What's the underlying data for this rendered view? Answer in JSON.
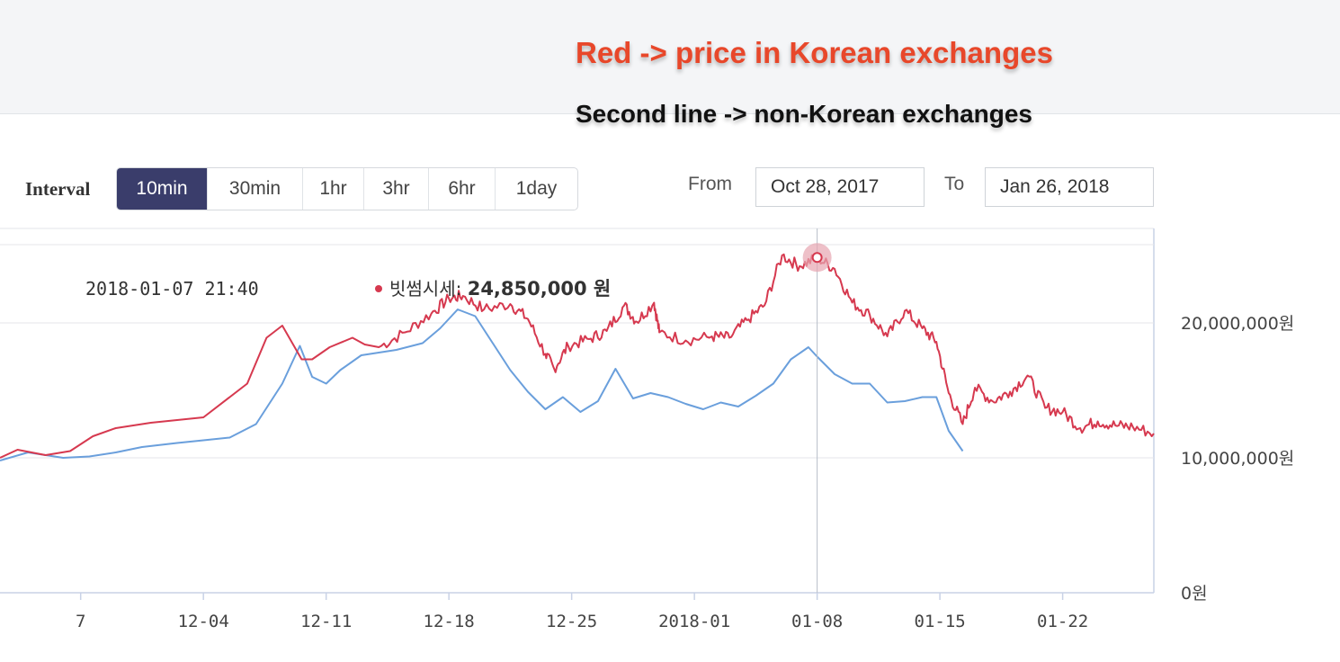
{
  "annotations": {
    "red_note": "Red -> price in Korean exchanges",
    "second_note": "Second line -> non-Korean exchanges"
  },
  "toolbar": {
    "interval_label": "Interval",
    "intervals": [
      "10min",
      "30min",
      "1hr",
      "3hr",
      "6hr",
      "1day"
    ],
    "active_interval": "10min",
    "from_label": "From",
    "from_value": "Oct 28, 2017",
    "to_label": "To",
    "to_value": "Jan 26, 2018"
  },
  "tooltip": {
    "time": "2018-01-07 21:40",
    "series_label": "빗썸시세: ",
    "value_text": "24,850,000 원"
  },
  "colors": {
    "korean_line": "#d6394f",
    "global_line": "#6a9fdc",
    "active_button": "#3a3d6b"
  },
  "chart_data": {
    "type": "line",
    "x_tick_labels": [
      "7",
      "12-04",
      "12-11",
      "12-18",
      "12-25",
      "2018-01",
      "01-08",
      "01-15",
      "01-22"
    ],
    "x_tick_days": [
      -7,
      0,
      7,
      14,
      21,
      28,
      35,
      42,
      49
    ],
    "x_note": "x values are days relative to 12-04 (2017-12-04)",
    "y_tick_labels": [
      "0원",
      "10,000,000원",
      "20,000,000원"
    ],
    "y_ticks": [
      0,
      10000000,
      20000000
    ],
    "ylim": [
      0,
      27000000
    ],
    "xlim": [
      -11.6,
      54.2
    ],
    "grid": true,
    "crosshair_day": 35.0,
    "highlight_point": {
      "day": 35.0,
      "value": 24850000
    },
    "series": [
      {
        "name": "빗썸시세",
        "x": [
          -11.6,
          -10.6,
          -9.0,
          -7.6,
          -6.3,
          -5.0,
          -3.0,
          0.0,
          2.5,
          3.6,
          4.5,
          5.6,
          6.2,
          7.2,
          8.5,
          9.2,
          10.0,
          11.5,
          13.0,
          14.0,
          14.8,
          16.0,
          17.5,
          18.5,
          19.5,
          20.0,
          20.8,
          22.0,
          23.0,
          24.0,
          24.7,
          25.7,
          26.0,
          27.5,
          29.0,
          30.0,
          31.0,
          32.0,
          33.0,
          34.0,
          35.0,
          36.0,
          37.0,
          38.0,
          39.0,
          40.0,
          41.0,
          41.8,
          42.5,
          43.3,
          44.0,
          45.0,
          46.0,
          47.0,
          48.0,
          49.0,
          50.0,
          51.0,
          52.0,
          53.0,
          54.2
        ],
        "y": [
          10000000,
          10600000,
          10200000,
          10500000,
          11600000,
          12200000,
          12600000,
          13000000,
          15500000,
          18900000,
          19800000,
          17300000,
          17300000,
          18200000,
          18900000,
          18400000,
          18200000,
          19300000,
          20700000,
          21800000,
          22000000,
          21000000,
          21400000,
          20300000,
          17700000,
          16600000,
          18300000,
          18800000,
          19400000,
          21300000,
          20100000,
          21500000,
          19300000,
          18700000,
          19000000,
          18900000,
          20200000,
          21300000,
          25000000,
          24200000,
          24850000,
          24000000,
          21500000,
          20600000,
          19000000,
          20900000,
          19600000,
          18600000,
          14800000,
          12500000,
          15200000,
          14200000,
          14900000,
          16100000,
          13700000,
          13400000,
          12200000,
          12700000,
          12400000,
          12300000,
          11800000
        ]
      },
      {
        "name": "",
        "x": [
          -11.6,
          -10.0,
          -8.0,
          -6.5,
          -5.0,
          -3.5,
          -1.5,
          0.0,
          1.5,
          3.0,
          4.5,
          5.5,
          6.2,
          7.0,
          7.8,
          9.0,
          11.0,
          12.5,
          13.5,
          14.5,
          15.5,
          16.5,
          17.5,
          18.5,
          19.5,
          20.5,
          21.5,
          22.5,
          23.5,
          24.5,
          25.5,
          26.5,
          27.5,
          28.5,
          29.5,
          30.5,
          31.5,
          32.5,
          33.5,
          34.5,
          35.0,
          36.0,
          37.0,
          38.0,
          39.0,
          40.0,
          41.0,
          41.8,
          42.5,
          43.3
        ],
        "y": [
          9800000,
          10400000,
          10000000,
          10100000,
          10400000,
          10800000,
          11100000,
          11300000,
          11500000,
          12500000,
          15500000,
          18300000,
          16000000,
          15500000,
          16500000,
          17600000,
          18000000,
          18500000,
          19600000,
          21000000,
          20500000,
          18500000,
          16500000,
          14900000,
          13600000,
          14500000,
          13400000,
          14200000,
          16600000,
          14400000,
          14800000,
          14500000,
          14000000,
          13600000,
          14100000,
          13800000,
          14600000,
          15500000,
          17300000,
          18200000,
          17500000,
          16200000,
          15500000,
          15500000,
          14100000,
          14200000,
          14500000,
          14500000,
          12000000,
          10500000
        ]
      }
    ]
  }
}
